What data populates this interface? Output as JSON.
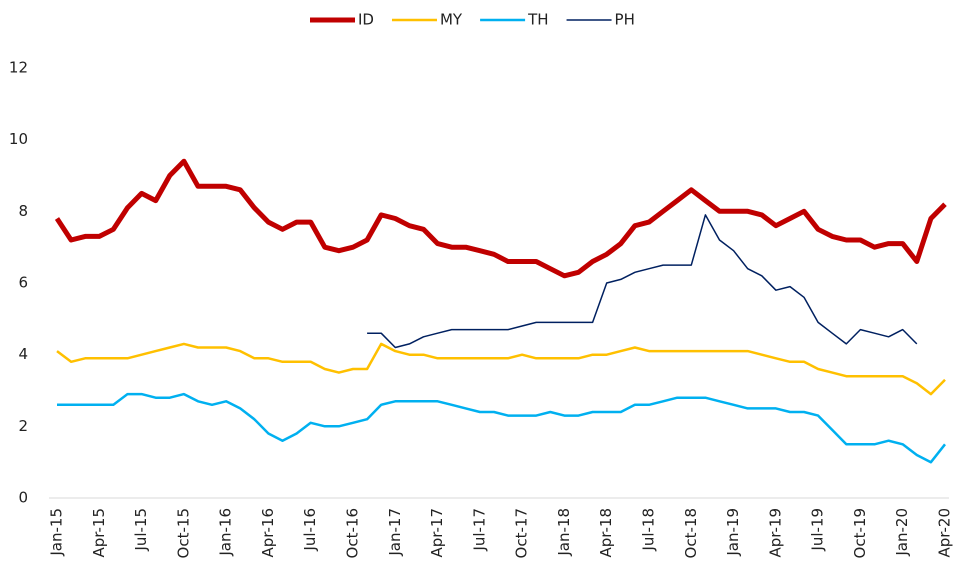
{
  "chart_data": {
    "type": "line",
    "categories": [
      "Jan-15",
      null,
      null,
      "Apr-15",
      null,
      null,
      "Jul-15",
      null,
      null,
      "Oct-15",
      null,
      null,
      "Jan-16",
      null,
      null,
      "Apr-16",
      null,
      null,
      "Jul-16",
      null,
      null,
      "Oct-16",
      null,
      null,
      "Jan-17",
      null,
      null,
      "Apr-17",
      null,
      null,
      "Jul-17",
      null,
      null,
      "Oct-17",
      null,
      null,
      "Jan-18",
      null,
      null,
      "Apr-18",
      null,
      null,
      "Jul-18",
      null,
      null,
      "Oct-18",
      null,
      null,
      "Jan-19",
      null,
      null,
      "Apr-19",
      null,
      null,
      "Jul-19",
      null,
      null,
      "Oct-19",
      null,
      null,
      "Jan-20",
      null,
      null,
      "Apr-20"
    ],
    "series": [
      {
        "name": "ID",
        "color": "#c00000",
        "line_width": 5,
        "values": [
          7.8,
          7.2,
          7.3,
          7.3,
          7.5,
          8.1,
          8.5,
          8.3,
          9.0,
          9.4,
          8.7,
          8.7,
          8.7,
          8.6,
          8.1,
          7.7,
          7.5,
          7.7,
          7.7,
          7.0,
          6.9,
          7.0,
          7.2,
          7.9,
          7.8,
          7.6,
          7.5,
          7.1,
          7.0,
          7.0,
          6.9,
          6.8,
          6.6,
          6.6,
          6.6,
          6.4,
          6.2,
          6.3,
          6.6,
          6.8,
          7.1,
          7.6,
          7.7,
          8.0,
          8.3,
          8.6,
          8.3,
          8.0,
          8.0,
          8.0,
          7.9,
          7.6,
          7.8,
          8.0,
          7.5,
          7.3,
          7.2,
          7.2,
          7.0,
          7.1,
          7.1,
          6.6,
          7.8,
          8.2
        ]
      },
      {
        "name": "MY",
        "color": "#ffc000",
        "line_width": 2.5,
        "values": [
          4.1,
          3.8,
          3.9,
          3.9,
          3.9,
          3.9,
          4.0,
          4.1,
          4.2,
          4.3,
          4.2,
          4.2,
          4.2,
          4.1,
          3.9,
          3.9,
          3.8,
          3.8,
          3.8,
          3.6,
          3.5,
          3.6,
          3.6,
          4.3,
          4.1,
          4.0,
          4.0,
          3.9,
          3.9,
          3.9,
          3.9,
          3.9,
          3.9,
          4.0,
          3.9,
          3.9,
          3.9,
          3.9,
          4.0,
          4.0,
          4.1,
          4.2,
          4.1,
          4.1,
          4.1,
          4.1,
          4.1,
          4.1,
          4.1,
          4.1,
          4.0,
          3.9,
          3.8,
          3.8,
          3.6,
          3.5,
          3.4,
          3.4,
          3.4,
          3.4,
          3.4,
          3.2,
          2.9,
          3.3
        ]
      },
      {
        "name": "TH",
        "color": "#00b0f0",
        "line_width": 2.5,
        "values": [
          2.6,
          2.6,
          2.6,
          2.6,
          2.6,
          2.9,
          2.9,
          2.8,
          2.8,
          2.9,
          2.7,
          2.6,
          2.7,
          2.5,
          2.2,
          1.8,
          1.6,
          1.8,
          2.1,
          2.0,
          2.0,
          2.1,
          2.2,
          2.6,
          2.7,
          2.7,
          2.7,
          2.7,
          2.6,
          2.5,
          2.4,
          2.4,
          2.3,
          2.3,
          2.3,
          2.4,
          2.3,
          2.3,
          2.4,
          2.4,
          2.4,
          2.6,
          2.6,
          2.7,
          2.8,
          2.8,
          2.8,
          2.7,
          2.6,
          2.5,
          2.5,
          2.5,
          2.4,
          2.4,
          2.3,
          1.9,
          1.5,
          1.5,
          1.5,
          1.6,
          1.5,
          1.2,
          1.0,
          1.5
        ]
      },
      {
        "name": "PH",
        "color": "#002060",
        "line_width": 1.5,
        "values": [
          null,
          null,
          null,
          null,
          null,
          null,
          null,
          null,
          null,
          null,
          null,
          null,
          null,
          null,
          null,
          null,
          null,
          null,
          null,
          null,
          null,
          null,
          4.6,
          4.6,
          4.2,
          4.3,
          4.5,
          4.6,
          4.7,
          4.7,
          4.7,
          4.7,
          4.7,
          4.8,
          4.9,
          4.9,
          4.9,
          4.9,
          4.9,
          6.0,
          6.1,
          6.3,
          6.4,
          6.5,
          6.5,
          6.5,
          7.9,
          7.2,
          6.9,
          6.4,
          6.2,
          5.8,
          5.9,
          5.6,
          4.9,
          4.6,
          4.3,
          4.7,
          4.6,
          4.5,
          4.7,
          4.3,
          null,
          null
        ]
      }
    ],
    "ylim": [
      0,
      12
    ],
    "yticks": [
      0,
      2,
      4,
      6,
      8,
      10,
      12
    ],
    "grid": false,
    "legend": "top"
  }
}
